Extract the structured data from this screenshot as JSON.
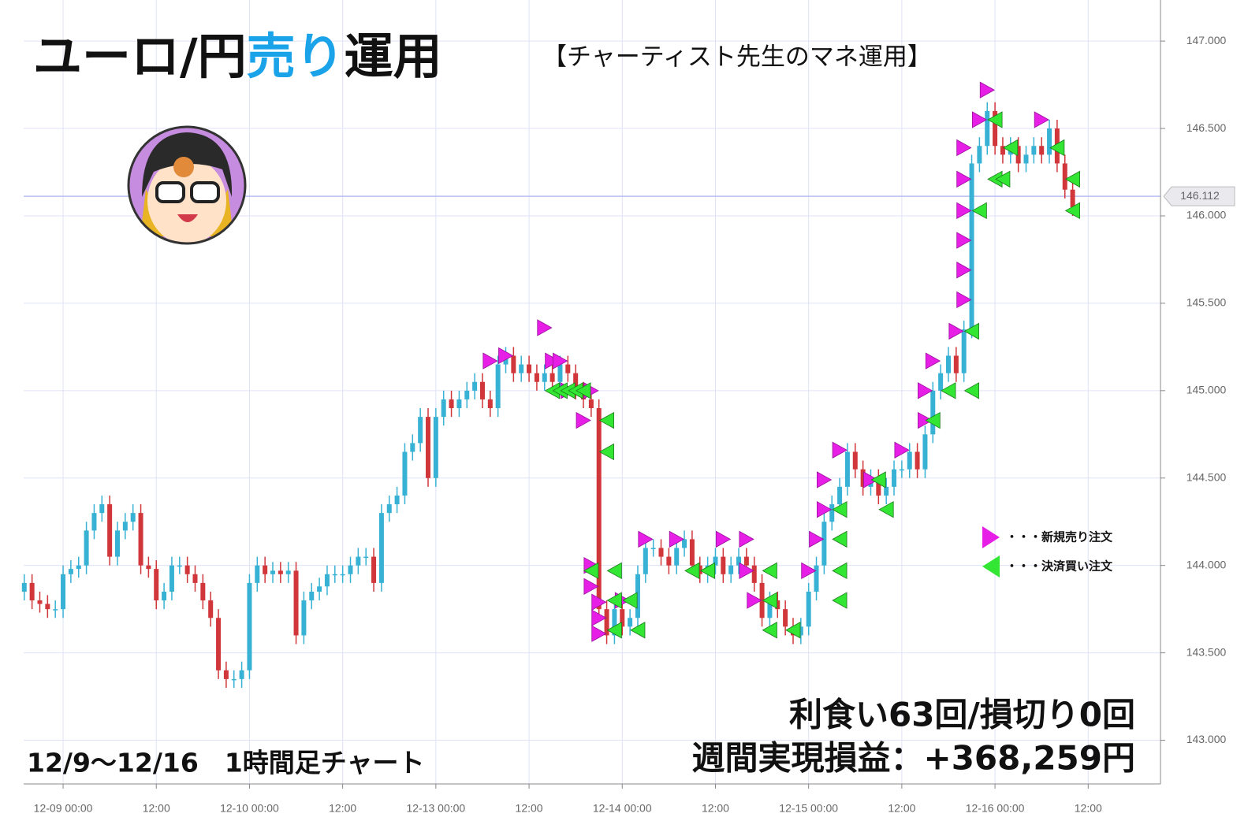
{
  "chart_data": {
    "type": "candlestick",
    "title_segments": [
      "ユーロ/円",
      "売り",
      "運用"
    ],
    "subtitle": "【チャーティスト先生のマネ運用】",
    "caption": "12/9〜12/16　1時間足チャート",
    "annotations": [
      "利食い63回/損切り0回",
      "週間実現損益：+368,259円"
    ],
    "up_color": "#38b2d4",
    "down_color": "#d0363a",
    "candles": {
      "x": [
        -5,
        -4,
        -3,
        -2,
        -1,
        0,
        1,
        2,
        3,
        4,
        5,
        6,
        7,
        8,
        9,
        10,
        11,
        12,
        13,
        14,
        15,
        16,
        17,
        18,
        19,
        20,
        21,
        22,
        23,
        24,
        25,
        26,
        27,
        28,
        29,
        30,
        31,
        32,
        33,
        34,
        35,
        36,
        37,
        38,
        39,
        40,
        41,
        42,
        43,
        44,
        45,
        46,
        47,
        48,
        49,
        50,
        51,
        52,
        53,
        54,
        55,
        56,
        57,
        58,
        59,
        60,
        61,
        62,
        63,
        64,
        65,
        66,
        67,
        68,
        69,
        70,
        71,
        72,
        73,
        74,
        75,
        76,
        77,
        78,
        79,
        80,
        81,
        82,
        83,
        84,
        85,
        86,
        87,
        88,
        89,
        90,
        91,
        92,
        93,
        94,
        95,
        96,
        97,
        98,
        99,
        100,
        101,
        102,
        103,
        104,
        105,
        106,
        107,
        108,
        109,
        110,
        111,
        112,
        113,
        114,
        115,
        116,
        117,
        118,
        119,
        120,
        121,
        122,
        123,
        124,
        125,
        126,
        127,
        128,
        129,
        130
      ],
      "open": [
        143.85,
        143.9,
        143.8,
        143.78,
        143.75,
        143.75,
        143.95,
        143.98,
        144.0,
        144.2,
        144.3,
        144.35,
        144.05,
        144.2,
        144.25,
        144.3,
        144.0,
        143.98,
        143.8,
        143.85,
        144.0,
        144.0,
        143.95,
        143.9,
        143.8,
        143.7,
        143.4,
        143.35,
        143.35,
        143.4,
        143.9,
        144.0,
        143.95,
        143.97,
        143.95,
        143.97,
        143.6,
        143.8,
        143.85,
        143.88,
        143.95,
        143.95,
        143.95,
        144.0,
        144.05,
        144.05,
        143.9,
        144.3,
        144.35,
        144.4,
        144.65,
        144.7,
        144.85,
        144.5,
        144.85,
        144.95,
        144.9,
        144.95,
        145.0,
        145.05,
        144.95,
        144.9,
        145.15,
        145.2,
        145.1,
        145.15,
        145.1,
        145.05,
        145.1,
        145.05,
        145.15,
        145.1,
        145.0,
        144.95,
        144.9,
        143.75,
        143.6,
        143.75,
        143.65,
        143.7,
        143.95,
        144.1,
        144.1,
        144.05,
        144.0,
        144.1,
        144.15,
        144.0,
        143.95,
        144.0,
        144.05,
        143.95,
        144.0,
        144.05,
        144.0,
        143.9,
        143.7,
        143.8,
        143.75,
        143.65,
        143.6,
        143.65,
        143.85,
        144.0,
        144.25,
        144.35,
        144.45,
        144.65,
        144.55,
        144.45,
        144.5,
        144.4,
        144.45,
        144.55,
        144.55,
        144.65,
        144.55,
        144.75,
        145.0,
        145.1,
        145.2,
        145.1,
        145.35,
        146.3,
        146.4,
        146.6,
        146.4,
        146.35,
        146.4,
        146.3,
        146.35,
        146.4,
        146.35,
        146.5,
        146.3,
        146.15
      ],
      "high": [
        143.95,
        143.95,
        143.85,
        143.83,
        143.8,
        144.0,
        144.03,
        144.05,
        144.25,
        144.35,
        144.4,
        144.4,
        144.25,
        144.3,
        144.35,
        144.35,
        144.05,
        144.03,
        143.9,
        144.05,
        144.05,
        144.05,
        144.0,
        143.95,
        143.85,
        143.75,
        143.45,
        143.4,
        143.45,
        143.95,
        144.05,
        144.05,
        144.02,
        144.02,
        144.02,
        144.02,
        143.85,
        143.9,
        143.93,
        144.0,
        144.0,
        144.0,
        144.05,
        144.1,
        144.1,
        144.1,
        144.35,
        144.4,
        144.45,
        144.7,
        144.75,
        144.9,
        144.9,
        144.9,
        145.0,
        145.0,
        145.0,
        145.05,
        145.1,
        145.1,
        145.0,
        145.2,
        145.25,
        145.25,
        145.2,
        145.2,
        145.15,
        145.15,
        145.15,
        145.2,
        145.2,
        145.15,
        145.05,
        145.0,
        144.95,
        143.8,
        143.8,
        143.8,
        143.75,
        144.0,
        144.15,
        144.15,
        144.15,
        144.1,
        144.15,
        144.2,
        144.2,
        144.05,
        144.05,
        144.1,
        144.1,
        144.05,
        144.1,
        144.1,
        144.05,
        143.95,
        143.85,
        143.85,
        143.8,
        143.7,
        143.7,
        143.9,
        144.05,
        144.3,
        144.4,
        144.5,
        144.7,
        144.7,
        144.6,
        144.55,
        144.55,
        144.5,
        144.6,
        144.6,
        144.7,
        144.7,
        144.8,
        145.05,
        145.15,
        145.25,
        145.25,
        145.4,
        146.35,
        146.45,
        146.65,
        146.65,
        146.45,
        146.45,
        146.45,
        146.4,
        146.45,
        146.45,
        146.55,
        146.55,
        146.35,
        146.2
      ],
      "low": [
        143.8,
        143.75,
        143.73,
        143.7,
        143.7,
        143.7,
        143.9,
        143.93,
        143.95,
        144.15,
        144.25,
        144.0,
        144.0,
        144.15,
        144.2,
        143.95,
        143.93,
        143.75,
        143.75,
        143.8,
        143.95,
        143.9,
        143.85,
        143.75,
        143.65,
        143.35,
        143.3,
        143.3,
        143.3,
        143.35,
        143.85,
        143.9,
        143.9,
        143.9,
        143.9,
        143.55,
        143.55,
        143.75,
        143.8,
        143.83,
        143.9,
        143.9,
        143.9,
        143.95,
        144.0,
        143.85,
        143.85,
        144.25,
        144.3,
        144.35,
        144.6,
        144.65,
        144.45,
        144.45,
        144.8,
        144.85,
        144.85,
        144.9,
        144.95,
        144.9,
        144.85,
        144.85,
        145.1,
        145.05,
        145.05,
        145.05,
        145.0,
        145.0,
        145.0,
        145.0,
        145.05,
        144.95,
        144.9,
        144.85,
        143.7,
        143.55,
        143.55,
        143.6,
        143.6,
        143.65,
        143.9,
        144.05,
        144.0,
        143.95,
        143.95,
        144.05,
        143.95,
        143.9,
        143.9,
        143.95,
        143.9,
        143.9,
        143.95,
        143.95,
        143.85,
        143.65,
        143.65,
        143.7,
        143.6,
        143.55,
        143.55,
        143.6,
        143.8,
        143.95,
        144.2,
        144.3,
        144.4,
        144.5,
        144.4,
        144.4,
        144.35,
        144.35,
        144.4,
        144.5,
        144.5,
        144.5,
        144.5,
        144.7,
        144.95,
        145.05,
        145.05,
        145.05,
        145.3,
        146.25,
        146.35,
        146.35,
        146.3,
        146.3,
        146.25,
        146.25,
        146.3,
        146.3,
        146.3,
        146.25,
        146.1,
        146.0
      ],
      "close": [
        143.9,
        143.8,
        143.78,
        143.75,
        143.75,
        143.95,
        143.98,
        144.0,
        144.2,
        144.3,
        144.35,
        144.05,
        144.2,
        144.25,
        144.3,
        144.0,
        143.98,
        143.8,
        143.85,
        144.0,
        144.0,
        143.95,
        143.9,
        143.8,
        143.7,
        143.4,
        143.35,
        143.35,
        143.4,
        143.9,
        144.0,
        143.95,
        143.97,
        143.95,
        143.97,
        143.6,
        143.8,
        143.85,
        143.88,
        143.95,
        143.95,
        143.95,
        144.0,
        144.05,
        144.05,
        143.9,
        144.3,
        144.35,
        144.4,
        144.65,
        144.7,
        144.85,
        144.5,
        144.85,
        144.95,
        144.9,
        144.95,
        145.0,
        145.05,
        144.95,
        144.9,
        145.15,
        145.2,
        145.1,
        145.15,
        145.1,
        145.05,
        145.1,
        145.05,
        145.15,
        145.1,
        145.0,
        144.95,
        144.9,
        143.75,
        143.6,
        143.75,
        143.65,
        143.7,
        143.95,
        144.1,
        144.1,
        144.05,
        144.0,
        144.1,
        144.15,
        144.0,
        143.95,
        144.0,
        144.05,
        143.95,
        144.0,
        144.05,
        144.0,
        143.9,
        143.7,
        143.8,
        143.75,
        143.65,
        143.6,
        143.65,
        143.85,
        144.0,
        144.25,
        144.35,
        144.45,
        144.65,
        144.55,
        144.45,
        144.5,
        144.4,
        144.45,
        144.55,
        144.55,
        144.65,
        144.55,
        144.75,
        145.0,
        145.1,
        145.2,
        145.1,
        145.35,
        146.3,
        146.4,
        146.6,
        146.4,
        146.35,
        146.4,
        146.3,
        146.35,
        146.4,
        146.35,
        146.5,
        146.3,
        146.15,
        146.05
      ]
    },
    "series": [
      {
        "name": "・・・新規売り注文",
        "color": "#e61ee6",
        "direction": "right",
        "x": [
          55,
          57,
          62,
          63,
          64,
          65,
          68,
          67,
          68,
          68,
          69,
          69,
          69,
          72,
          75,
          79,
          85,
          88,
          88,
          89,
          96,
          97,
          100,
          98,
          98,
          104,
          108,
          111,
          111,
          112,
          115,
          116,
          116,
          116,
          116,
          116,
          116,
          118,
          119,
          126
        ],
        "values": [
          145.17,
          145.2,
          145.36,
          145.17,
          145.17,
          145.0,
          145.0,
          144.83,
          144.0,
          143.88,
          143.79,
          143.7,
          143.61,
          143.8,
          144.15,
          144.15,
          144.15,
          144.15,
          143.97,
          143.8,
          143.97,
          144.15,
          144.66,
          144.49,
          144.32,
          144.49,
          144.66,
          144.83,
          145.0,
          145.17,
          145.34,
          145.52,
          145.69,
          145.86,
          146.03,
          146.21,
          146.39,
          146.55,
          146.72,
          146.55
        ]
      },
      {
        "name": "・・・決済買い注文",
        "color": "#33e633",
        "direction": "left",
        "x": [
          63,
          64,
          65,
          66,
          67,
          70,
          70,
          68,
          71,
          71,
          71,
          73,
          74,
          81,
          83,
          91,
          91,
          91,
          94,
          100,
          100,
          100,
          100,
          106,
          105,
          112,
          114,
          117,
          117,
          118,
          120,
          122,
          120,
          121,
          128,
          130,
          130
        ],
        "values": [
          145.0,
          145.0,
          145.0,
          145.0,
          145.0,
          144.83,
          144.65,
          143.97,
          143.97,
          143.8,
          143.63,
          143.8,
          143.63,
          143.97,
          143.97,
          143.97,
          143.8,
          143.63,
          143.63,
          144.15,
          143.97,
          143.8,
          144.32,
          144.32,
          144.49,
          144.83,
          145.0,
          145.0,
          145.34,
          146.03,
          146.55,
          146.39,
          146.21,
          146.21,
          146.39,
          146.21,
          146.03
        ]
      }
    ],
    "current_price": {
      "value": 146.112,
      "label": "146.112"
    },
    "xlim": [
      -5.08,
      141.31
    ],
    "xticks": [
      {
        "value": 0,
        "label": "12-09 00:00"
      },
      {
        "value": 12,
        "label": "12:00"
      },
      {
        "value": 24,
        "label": "12-10 00:00"
      },
      {
        "value": 36,
        "label": "12:00"
      },
      {
        "value": 48,
        "label": "12-13 00:00"
      },
      {
        "value": 60,
        "label": "12:00"
      },
      {
        "value": 72,
        "label": "12-14 00:00"
      },
      {
        "value": 84,
        "label": "12:00"
      },
      {
        "value": 96,
        "label": "12-15 00:00"
      },
      {
        "value": 108,
        "label": "12:00"
      },
      {
        "value": 120,
        "label": "12-16 00:00"
      },
      {
        "value": 132,
        "label": "12:00"
      }
    ],
    "ylim": [
      142.75,
      147.235
    ],
    "yticks": [
      {
        "value": 143,
        "label": "143.000"
      },
      {
        "value": 143.5,
        "label": "143.500"
      },
      {
        "value": 144,
        "label": "144.000"
      },
      {
        "value": 144.5,
        "label": "144.500"
      },
      {
        "value": 145,
        "label": "145.000"
      },
      {
        "value": 145.5,
        "label": "145.500"
      },
      {
        "value": 146,
        "label": "146.000"
      },
      {
        "value": 146.5,
        "label": "146.500"
      },
      {
        "value": 147,
        "label": "147.000"
      }
    ],
    "grid": true
  }
}
